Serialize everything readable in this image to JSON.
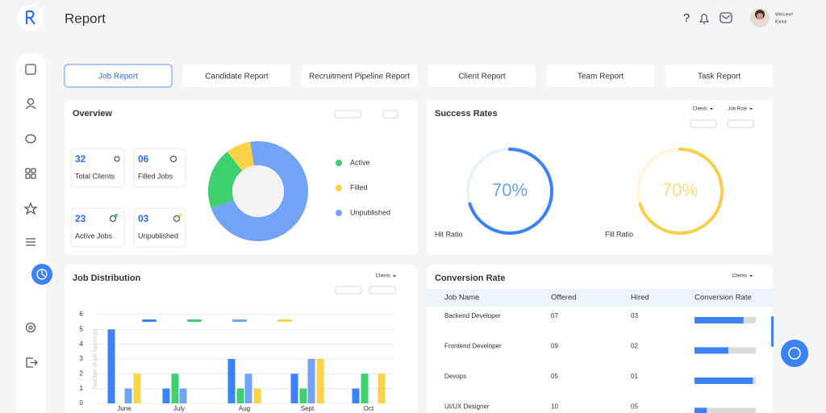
{
  "header": {
    "title": "Report",
    "greeting": "Welcome!",
    "user": "Komal"
  },
  "tabs": [
    "Job Report",
    "Candidate Report",
    "Recruitment Pipeline  Report",
    "Client Report",
    "Team Report",
    "Task Report"
  ],
  "active_tab": 0,
  "overview": {
    "title": "Overview",
    "stats": [
      {
        "value": "32",
        "label": "Total Clients"
      },
      {
        "value": "06",
        "label": "Filled Jobs"
      },
      {
        "value": "23",
        "label": "Active Jobs"
      },
      {
        "value": "03",
        "label": "Unpublished"
      }
    ]
  },
  "success_rates": {
    "title": "Success Rates",
    "filters": [
      "Clients",
      "Job Role"
    ]
  },
  "job_distribution": {
    "title": "Job Distribution",
    "filters": [
      "Clients"
    ]
  },
  "conversion_rate": {
    "title": "Conversion Rate",
    "filters": [
      "Clients"
    ],
    "columns": [
      "Job Name",
      "Offered",
      "Hired",
      "Conversion Rate"
    ],
    "rows": [
      [
        "Backend Developer",
        "07",
        "03"
      ],
      [
        "Frontend Developer",
        "09",
        "02"
      ],
      [
        "Devops",
        "05",
        "01"
      ],
      [
        "UI/UX Designer",
        "10",
        "05"
      ]
    ],
    "rates": [
      80,
      55,
      95,
      20
    ],
    "xlim": [
      0,
      100
    ],
    "color": "#3b82f6"
  },
  "chart_data": [
    {
      "type": "pie",
      "donut": true,
      "categories": [
        "Active",
        "Filled",
        "Unpublished"
      ],
      "values": [
        20,
        8,
        72
      ],
      "colors": [
        "#3ecf6e",
        "#fbd347",
        "#72a3f6"
      ]
    },
    {
      "type": "gauge",
      "categories": [
        "Hit Ratio",
        "Fill Ratio"
      ],
      "values": [
        70,
        70
      ],
      "value_labels": [
        "70%",
        "70%"
      ],
      "colors": [
        "#3b82f6",
        "#f7cf4a"
      ],
      "ylim": [
        0,
        100
      ]
    },
    {
      "type": "bar",
      "ylabel": "Number of job openings",
      "categories": [
        "June",
        "July",
        "Aug",
        "Sept",
        "Oct"
      ],
      "series": [
        {
          "color": "#3b82f6",
          "values": [
            5,
            1,
            3,
            2,
            1
          ]
        },
        {
          "color": "#3ecf6e",
          "values": [
            0,
            2,
            1,
            1,
            2
          ]
        },
        {
          "color": "#72a3f6",
          "values": [
            1,
            1,
            2,
            3,
            0
          ]
        },
        {
          "color": "#fbd347",
          "values": [
            2,
            0,
            1,
            3,
            2
          ]
        }
      ],
      "ylim": [
        0,
        6
      ],
      "yticks": [
        0,
        1,
        2,
        3,
        4,
        5,
        6
      ],
      "grid": true
    }
  ]
}
